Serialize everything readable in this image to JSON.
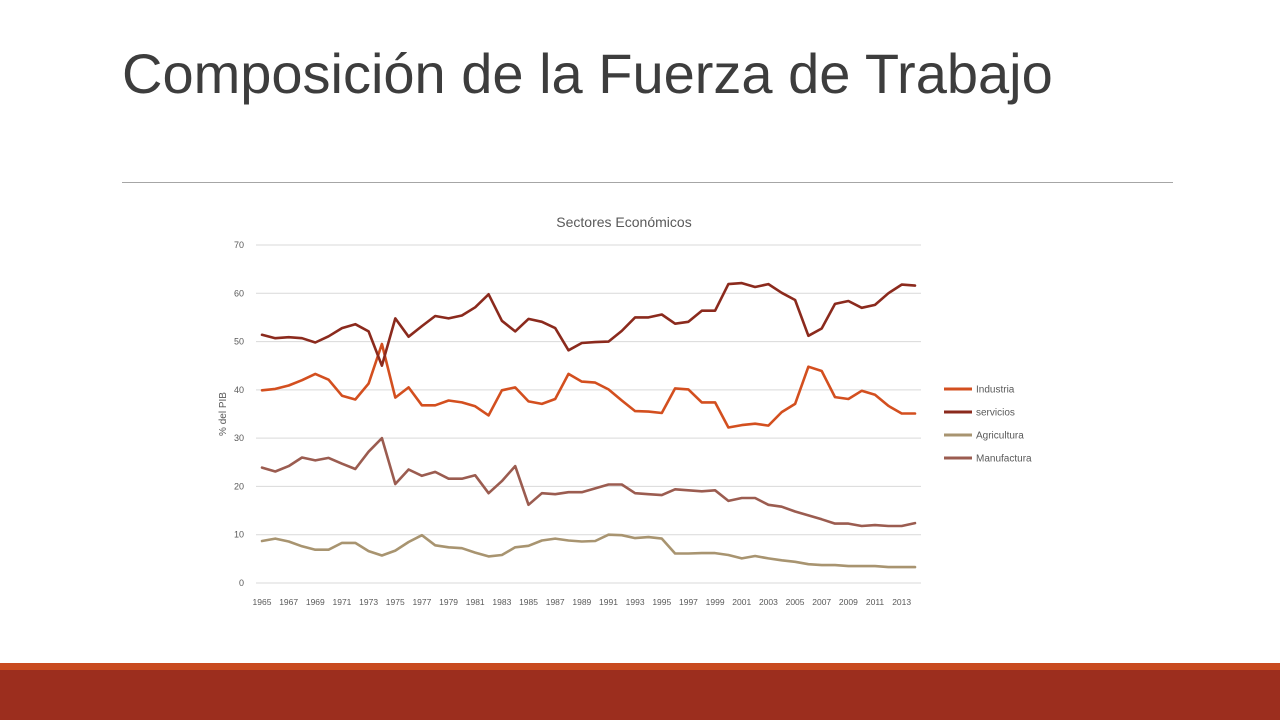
{
  "slide": {
    "title": "Composición de la Fuerza de Trabajo",
    "accent_color": "#9c2e1e",
    "accent_thin_color": "#c84a1f"
  },
  "chart_data": {
    "type": "line",
    "title": "Sectores Económicos",
    "ylabel": "% del PIB",
    "xlabel": "",
    "ylim": [
      0,
      70
    ],
    "yticks": [
      0,
      10,
      20,
      30,
      40,
      50,
      60,
      70
    ],
    "grid": true,
    "legend_position": "right",
    "x": [
      1965,
      1966,
      1967,
      1968,
      1969,
      1970,
      1971,
      1972,
      1973,
      1974,
      1975,
      1976,
      1977,
      1978,
      1979,
      1980,
      1981,
      1982,
      1983,
      1984,
      1985,
      1986,
      1987,
      1988,
      1989,
      1990,
      1991,
      1992,
      1993,
      1994,
      1995,
      1996,
      1997,
      1998,
      1999,
      2000,
      2001,
      2002,
      2003,
      2004,
      2005,
      2006,
      2007,
      2008,
      2009,
      2010,
      2011,
      2012,
      2013,
      2014
    ],
    "xtick_labels": [
      "1965",
      "1967",
      "1969",
      "1971",
      "1973",
      "1975",
      "1977",
      "1979",
      "1981",
      "1983",
      "1985",
      "1987",
      "1989",
      "1991",
      "1993",
      "1995",
      "1997",
      "1999",
      "2001",
      "2003",
      "2005",
      "2007",
      "2009",
      "2011",
      "2013"
    ],
    "series": [
      {
        "name": "Industria",
        "color": "#d34f1f",
        "values": [
          39.9,
          40.2,
          40.9,
          42.0,
          43.3,
          42.1,
          38.8,
          38.0,
          41.3,
          49.5,
          38.4,
          40.5,
          36.8,
          36.8,
          37.8,
          37.4,
          36.6,
          34.7,
          39.9,
          40.5,
          37.6,
          37.1,
          38.1,
          43.3,
          41.7,
          41.5,
          40.1,
          37.8,
          35.6,
          35.5,
          35.2,
          40.3,
          40.1,
          37.4,
          37.4,
          32.2,
          32.7,
          33.0,
          32.6,
          35.4,
          37.1,
          44.8,
          43.9,
          38.5,
          38.1,
          39.8,
          39.0,
          36.7,
          35.1,
          35.1
        ]
      },
      {
        "name": "servicios",
        "color": "#8b2a1d",
        "values": [
          51.4,
          50.7,
          50.9,
          50.7,
          49.8,
          51.1,
          52.8,
          53.6,
          52.1,
          45.0,
          54.8,
          51.0,
          53.2,
          55.3,
          54.8,
          55.4,
          57.1,
          59.8,
          54.3,
          52.1,
          54.7,
          54.1,
          52.8,
          48.2,
          49.7,
          49.9,
          50.0,
          52.2,
          55.0,
          55.0,
          55.6,
          53.7,
          54.1,
          56.4,
          56.4,
          61.9,
          62.1,
          61.3,
          61.9,
          60.1,
          58.6,
          51.2,
          52.7,
          57.8,
          58.4,
          57.0,
          57.6,
          60.0,
          61.8,
          61.6
        ]
      },
      {
        "name": "Agricultura",
        "color": "#a89470",
        "values": [
          8.7,
          9.2,
          8.6,
          7.6,
          6.9,
          6.9,
          8.3,
          8.3,
          6.6,
          5.7,
          6.7,
          8.5,
          9.9,
          7.8,
          7.4,
          7.2,
          6.3,
          5.5,
          5.8,
          7.4,
          7.7,
          8.8,
          9.2,
          8.8,
          8.6,
          8.7,
          10.0,
          9.9,
          9.3,
          9.5,
          9.2,
          6.1,
          6.1,
          6.2,
          6.2,
          5.8,
          5.1,
          5.6,
          5.1,
          4.7,
          4.4,
          3.9,
          3.7,
          3.7,
          3.5,
          3.5,
          3.5,
          3.3,
          3.3,
          3.3
        ]
      },
      {
        "name": "Manufactura",
        "color": "#9b5c50",
        "values": [
          23.9,
          23.1,
          24.2,
          26.0,
          25.4,
          25.9,
          24.7,
          23.6,
          27.2,
          30.0,
          20.5,
          23.5,
          22.2,
          23.0,
          21.6,
          21.6,
          22.3,
          18.6,
          21.1,
          24.2,
          16.2,
          18.6,
          18.4,
          18.8,
          18.8,
          19.6,
          20.4,
          20.4,
          18.6,
          18.4,
          18.2,
          19.4,
          19.2,
          19.0,
          19.2,
          17.0,
          17.6,
          17.6,
          16.2,
          15.8,
          14.8,
          14.0,
          13.2,
          12.3,
          12.3,
          11.8,
          12.0,
          11.8,
          11.8,
          12.4
        ]
      }
    ]
  }
}
